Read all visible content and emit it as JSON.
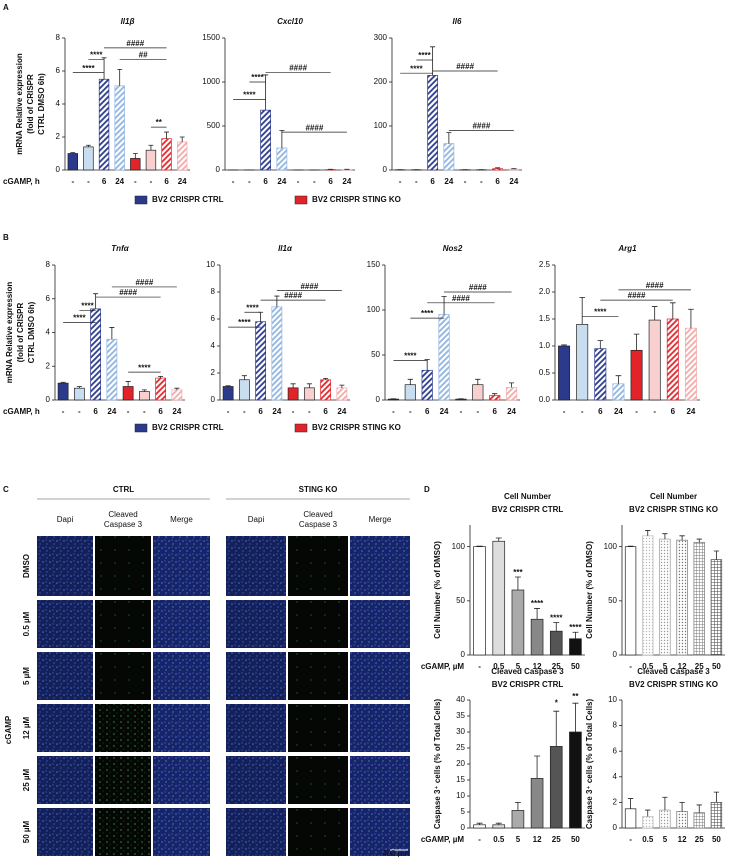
{
  "figure": {
    "panel_labels": [
      "A",
      "B",
      "C",
      "D"
    ]
  },
  "legends": [
    [
      {
        "name": "BV2 CRISPR CTRL",
        "color": "#2b3a8c"
      },
      {
        "name": "BV2 CRISPR STING KO",
        "color": "#e2242a"
      }
    ],
    [
      {
        "name": "BV2 CRISPR CTRL",
        "color": "#2b3a8c"
      },
      {
        "name": "BV2 CRISPR STING KO",
        "color": "#e2242a"
      }
    ]
  ],
  "panel_c": {
    "groups": [
      "CTRL",
      "STING KO"
    ],
    "columns": [
      [
        "Dapi"
      ],
      [
        "Cleaved",
        "Caspase 3"
      ],
      [
        "Merge"
      ],
      [
        "Dapi"
      ],
      [
        "Cleaved",
        "Caspase 3"
      ],
      [
        "Merge"
      ]
    ],
    "rows": [
      "DMSO",
      "0.5 µM",
      "5 µM",
      "12 µM",
      "25 µM",
      "50 µM"
    ],
    "side_label": "cGAMP",
    "scale": "400 µm"
  },
  "chart_data": [
    {
      "type": "bar",
      "title": "Il1β",
      "ylabel": [
        "mRNA Relative expression",
        "(fold of CRISPR",
        "CTRL DMSO 6h)"
      ],
      "xlabel": "cGAMP, h",
      "categories": [
        "-",
        "-",
        "6",
        "24",
        "-",
        "-",
        "6",
        "24"
      ],
      "values": [
        1.0,
        1.4,
        5.5,
        5.1,
        0.7,
        1.2,
        1.9,
        1.7
      ],
      "errors": [
        0.05,
        0.1,
        1.3,
        1.0,
        0.3,
        0.3,
        0.4,
        0.3
      ],
      "colors": [
        "#2b3a8c",
        "#c9ddf1",
        "#2b3a8c",
        "#8fb4e0",
        "#e2242a",
        "#f9d0d0",
        "#e2242a",
        "#f4a9a9"
      ],
      "patterns": [
        "solid",
        "solid",
        "hatch",
        "hatch",
        "solid",
        "solid",
        "hatch",
        "hatch"
      ],
      "ylim": [
        0,
        8
      ],
      "yticks": [
        0,
        2,
        4,
        6,
        8
      ],
      "annotations": [
        "****",
        "****",
        "####",
        "##",
        "**"
      ]
    },
    {
      "type": "bar",
      "title": "Cxcl10",
      "categories": [
        "-",
        "-",
        "6",
        "24",
        "-",
        "-",
        "6",
        "24"
      ],
      "values": [
        1,
        1,
        680,
        250,
        1,
        1,
        5,
        5
      ],
      "errors": [
        0.5,
        0.5,
        400,
        200,
        0.5,
        0.5,
        3,
        3
      ],
      "colors": [
        "#2b3a8c",
        "#c9ddf1",
        "#2b3a8c",
        "#8fb4e0",
        "#e2242a",
        "#f9d0d0",
        "#e2242a",
        "#f4a9a9"
      ],
      "patterns": [
        "solid",
        "solid",
        "hatch",
        "hatch",
        "solid",
        "solid",
        "hatch",
        "hatch"
      ],
      "ylim": [
        0,
        1500
      ],
      "yticks": [
        0,
        500,
        1000,
        1500
      ],
      "annotations": [
        "****",
        "****",
        "####",
        "####"
      ]
    },
    {
      "type": "bar",
      "title": "Il6",
      "categories": [
        "-",
        "-",
        "6",
        "24",
        "-",
        "-",
        "6",
        "24"
      ],
      "values": [
        0.5,
        0.5,
        215,
        60,
        0.5,
        0.5,
        3,
        2
      ],
      "errors": [
        0.2,
        0.2,
        65,
        25,
        0.2,
        0.2,
        2,
        1
      ],
      "colors": [
        "#2b3a8c",
        "#c9ddf1",
        "#2b3a8c",
        "#8fb4e0",
        "#e2242a",
        "#f9d0d0",
        "#e2242a",
        "#f4a9a9"
      ],
      "patterns": [
        "solid",
        "solid",
        "hatch",
        "hatch",
        "solid",
        "solid",
        "hatch",
        "hatch"
      ],
      "ylim": [
        0,
        300
      ],
      "yticks": [
        0,
        100,
        200,
        300
      ],
      "annotations": [
        "****",
        "****",
        "####",
        "####"
      ]
    },
    {
      "type": "bar",
      "title": "Tnfα",
      "ylabel": [
        "mRNA Relative expression",
        "(fold of CRISPR",
        "CTRL DMSO 6h)"
      ],
      "xlabel": "cGAMP, h",
      "categories": [
        "-",
        "-",
        "6",
        "24",
        "-",
        "-",
        "6",
        "24"
      ],
      "values": [
        1.0,
        0.7,
        5.4,
        3.6,
        0.8,
        0.5,
        1.3,
        0.6
      ],
      "errors": [
        0.05,
        0.1,
        0.9,
        0.7,
        0.3,
        0.1,
        0.1,
        0.1
      ],
      "colors": [
        "#2b3a8c",
        "#c9ddf1",
        "#2b3a8c",
        "#8fb4e0",
        "#e2242a",
        "#f9d0d0",
        "#e2242a",
        "#f4a9a9"
      ],
      "patterns": [
        "solid",
        "solid",
        "hatch",
        "hatch",
        "solid",
        "solid",
        "hatch",
        "hatch"
      ],
      "ylim": [
        0,
        8
      ],
      "yticks": [
        0,
        2,
        4,
        6,
        8
      ],
      "annotations": [
        "****",
        "****",
        "####",
        "####",
        "****"
      ]
    },
    {
      "type": "bar",
      "title": "Il1α",
      "categories": [
        "-",
        "-",
        "6",
        "24",
        "-",
        "-",
        "6",
        "24"
      ],
      "values": [
        1.0,
        1.5,
        5.8,
        6.9,
        0.9,
        0.9,
        1.5,
        0.9
      ],
      "errors": [
        0.05,
        0.3,
        0.7,
        0.8,
        0.3,
        0.3,
        0.1,
        0.2
      ],
      "colors": [
        "#2b3a8c",
        "#c9ddf1",
        "#2b3a8c",
        "#8fb4e0",
        "#e2242a",
        "#f9d0d0",
        "#e2242a",
        "#f4a9a9"
      ],
      "patterns": [
        "solid",
        "solid",
        "hatch",
        "hatch",
        "solid",
        "solid",
        "hatch",
        "hatch"
      ],
      "ylim": [
        0,
        10
      ],
      "yticks": [
        0,
        2,
        4,
        6,
        8,
        10
      ],
      "annotations": [
        "****",
        "****",
        "####",
        "####"
      ]
    },
    {
      "type": "bar",
      "title": "Nos2",
      "categories": [
        "-",
        "-",
        "6",
        "24",
        "-",
        "-",
        "6",
        "24"
      ],
      "values": [
        1,
        17,
        33,
        95,
        1,
        17,
        5,
        14
      ],
      "errors": [
        0.3,
        6,
        12,
        20,
        0.3,
        6,
        2,
        5
      ],
      "colors": [
        "#2b3a8c",
        "#c9ddf1",
        "#2b3a8c",
        "#8fb4e0",
        "#e2242a",
        "#f9d0d0",
        "#e2242a",
        "#f4a9a9"
      ],
      "patterns": [
        "solid",
        "solid",
        "hatch",
        "hatch",
        "solid",
        "solid",
        "hatch",
        "hatch"
      ],
      "ylim": [
        0,
        150
      ],
      "yticks": [
        0,
        50,
        100,
        150
      ],
      "annotations": [
        "****",
        "****",
        "####",
        "####"
      ]
    },
    {
      "type": "bar",
      "title": "Arg1",
      "categories": [
        "-",
        "-",
        "6",
        "24",
        "-",
        "-",
        "6",
        "24"
      ],
      "values": [
        1.0,
        1.4,
        0.95,
        0.3,
        0.92,
        1.48,
        1.5,
        1.33
      ],
      "errors": [
        0.02,
        0.5,
        0.15,
        0.15,
        0.3,
        0.25,
        0.3,
        0.35
      ],
      "colors": [
        "#2b3a8c",
        "#c9ddf1",
        "#2b3a8c",
        "#8fb4e0",
        "#e2242a",
        "#f9d0d0",
        "#e2242a",
        "#f4a9a9"
      ],
      "patterns": [
        "solid",
        "solid",
        "hatch",
        "hatch",
        "solid",
        "solid",
        "hatch",
        "hatch"
      ],
      "ylim": [
        0,
        2.5
      ],
      "yticks": [
        {
          "value": 0,
          "label": "0.0"
        },
        0.5,
        {
          "value": 1,
          "label": "1.0"
        },
        1.5,
        {
          "value": 2,
          "label": "2.0"
        },
        2.5
      ],
      "annotations": [
        "****",
        "####",
        "####"
      ]
    },
    {
      "type": "bar",
      "title": "Cell Number",
      "subtitle": "BV2 CRISPR CTRL",
      "ylabel": [
        "Cell  Number (% of DMSO)"
      ],
      "xlabel": "cGAMP, µM",
      "categories": [
        "-",
        "0.5",
        "5",
        "12",
        "25",
        "50"
      ],
      "values": [
        100,
        105,
        60,
        33,
        22,
        15
      ],
      "errors": [
        0.5,
        3,
        12,
        10,
        8,
        6
      ],
      "colors": [
        "#ffffff",
        "#dddddd",
        "#aaaaaa",
        "#888888",
        "#555555",
        "#111111"
      ],
      "patterns": [
        "solid",
        "solid",
        "solid",
        "solid",
        "solid",
        "solid"
      ],
      "ylim": [
        0,
        120
      ],
      "yticks": [
        0,
        50,
        100
      ],
      "annotations": [
        "***",
        "****",
        "****",
        "****"
      ]
    },
    {
      "type": "bar",
      "title": "Cell Number",
      "subtitle": "BV2 CRISPR STING KO",
      "ylabel": [
        "Cell  Number (% of DMSO)"
      ],
      "categories": [
        "-",
        "0.5",
        "5",
        "12",
        "25",
        "50"
      ],
      "values": [
        100,
        110,
        107,
        106,
        104,
        88
      ],
      "errors": [
        0.5,
        5,
        5,
        4,
        3,
        8
      ],
      "colors": [
        "#ffffff",
        "#bbbbbb",
        "#999999",
        "#777777",
        "#777777",
        "#444444"
      ],
      "patterns": [
        "solid",
        "dots",
        "dots",
        "dots",
        "grid",
        "grid"
      ],
      "ylim": [
        0,
        120
      ],
      "yticks": [
        0,
        50,
        100
      ]
    },
    {
      "type": "bar",
      "title": "Cleaved Caspase 3",
      "subtitle": "BV2 CRISPR CTRL",
      "ylabel": [
        "Caspase 3⁺ cells (% of Total Cells)"
      ],
      "xlabel": "cGAMP, µM",
      "categories": [
        "-",
        "0.5",
        "5",
        "12",
        "25",
        "50"
      ],
      "values": [
        1,
        1,
        5.5,
        15.5,
        25.5,
        30
      ],
      "errors": [
        0.5,
        0.5,
        2.5,
        7,
        11,
        9
      ],
      "colors": [
        "#ffffff",
        "#dddddd",
        "#aaaaaa",
        "#888888",
        "#555555",
        "#111111"
      ],
      "patterns": [
        "solid",
        "solid",
        "solid",
        "solid",
        "solid",
        "solid"
      ],
      "ylim": [
        0,
        40
      ],
      "yticks": [
        0,
        5,
        10,
        15,
        20,
        25,
        30,
        35,
        40
      ],
      "annotations": [
        "*",
        "**"
      ]
    },
    {
      "type": "bar",
      "title": "Cleaved Caspase 3",
      "subtitle": "BV2 CRISPR STING KO",
      "ylabel": [
        "Caspase 3⁺ cells (% of Total Cells)"
      ],
      "categories": [
        "-",
        "0.5",
        "5",
        "12",
        "25",
        "50"
      ],
      "values": [
        1.5,
        0.9,
        1.4,
        1.3,
        1.2,
        2.0
      ],
      "errors": [
        0.8,
        0.5,
        1.0,
        0.7,
        0.6,
        0.8
      ],
      "colors": [
        "#ffffff",
        "#bbbbbb",
        "#999999",
        "#777777",
        "#777777",
        "#444444"
      ],
      "patterns": [
        "solid",
        "dots",
        "dots",
        "dots",
        "grid",
        "grid"
      ],
      "ylim": [
        0,
        10
      ],
      "yticks": [
        0,
        2,
        4,
        6,
        8,
        10
      ]
    }
  ]
}
